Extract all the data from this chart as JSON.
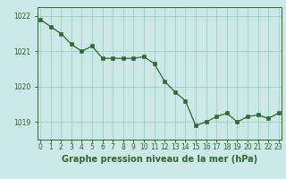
{
  "x": [
    0,
    1,
    2,
    3,
    4,
    5,
    6,
    7,
    8,
    9,
    10,
    11,
    12,
    13,
    14,
    15,
    16,
    17,
    18,
    19,
    20,
    21,
    22,
    23
  ],
  "y": [
    1021.9,
    1021.7,
    1021.5,
    1021.2,
    1021.0,
    1021.15,
    1020.8,
    1020.8,
    1020.8,
    1020.8,
    1020.85,
    1020.65,
    1020.15,
    1019.85,
    1019.6,
    1018.9,
    1019.0,
    1019.15,
    1019.25,
    1019.0,
    1019.15,
    1019.2,
    1019.1,
    1019.25
  ],
  "line_color": "#2d6a2d",
  "marker_color": "#2d6a2d",
  "bg_color": "#cce8e8",
  "grid_color": "#99ccbb",
  "axis_color": "#2d6a2d",
  "tick_color": "#2d6a2d",
  "xlabel": "Graphe pression niveau de la mer (hPa)",
  "xlabel_color": "#2d6a2d",
  "ylim": [
    1018.5,
    1022.25
  ],
  "yticks": [
    1019,
    1020,
    1021,
    1022
  ],
  "xticks": [
    0,
    1,
    2,
    3,
    4,
    5,
    6,
    7,
    8,
    9,
    10,
    11,
    12,
    13,
    14,
    15,
    16,
    17,
    18,
    19,
    20,
    21,
    22,
    23
  ],
  "xtick_labels": [
    "0",
    "1",
    "2",
    "3",
    "4",
    "5",
    "6",
    "7",
    "8",
    "9",
    "10",
    "11",
    "12",
    "13",
    "14",
    "15",
    "16",
    "17",
    "18",
    "19",
    "20",
    "21",
    "22",
    "23"
  ],
  "tick_fontsize": 5.5,
  "xlabel_fontsize": 7,
  "marker_size": 2.2,
  "line_width": 0.9
}
